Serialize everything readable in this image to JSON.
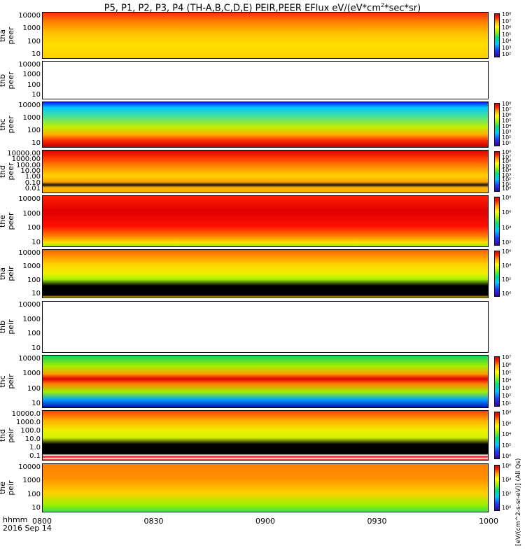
{
  "title_html": "P5, P1, P2, P3, P4 (TH-A,B,C,D,E) PEIR,PEER EFlux eV/(eV*cm<sup>2</sup>*sec*sr)",
  "time_axis": {
    "label_line1": "hhmm",
    "label_line2": "2016 Sep 14",
    "ticks": [
      "0800",
      "0830",
      "0900",
      "0930",
      "1000"
    ]
  },
  "colorbar_label": "[eV/(cm^2-s-sr-eV)] (All Qs)",
  "chart_data": {
    "type": "heatmap",
    "x_range": [
      "0800",
      "1000"
    ],
    "panels": [
      {
        "name": "tha peer",
        "ylabel": [
          "tha",
          "peer"
        ],
        "yticks": [
          "10000",
          "1000",
          "100",
          "10"
        ],
        "colorbar_ticks": [
          "10⁸",
          "10⁷",
          "10⁶",
          "10⁵",
          "10⁴",
          "10³",
          "10²"
        ],
        "has_data": true
      },
      {
        "name": "thb peer",
        "ylabel": [
          "thb",
          "peer"
        ],
        "yticks": [
          "10000",
          "1000",
          "100",
          "10"
        ],
        "colorbar_ticks": [],
        "has_data": false
      },
      {
        "name": "thc peer",
        "ylabel": [
          "thc",
          "peer"
        ],
        "yticks": [
          "10000",
          "1000",
          "100",
          "10"
        ],
        "colorbar_ticks": [
          "10⁸",
          "10⁷",
          "10⁶",
          "10⁵",
          "10⁴",
          "10³",
          "10²",
          "10¹"
        ],
        "has_data": true
      },
      {
        "name": "thd peer",
        "ylabel": [
          "thd",
          "peer"
        ],
        "yticks": [
          "10000.00",
          "1000.00",
          "100.00",
          "10.00",
          "1.00",
          "0.10",
          "0.01"
        ],
        "colorbar_ticks": [
          "10⁸",
          "10⁷",
          "10⁶",
          "10⁵",
          "10⁴",
          "10³",
          "10²",
          "10¹",
          "10⁰"
        ],
        "has_data": true
      },
      {
        "name": "the peer",
        "ylabel": [
          "the",
          "peer"
        ],
        "yticks": [
          "10000",
          "1000",
          "100",
          "10"
        ],
        "colorbar_ticks": [
          "10⁸",
          "10⁶",
          "10⁴",
          "10²"
        ],
        "has_data": true
      },
      {
        "name": "tha peir",
        "ylabel": [
          "tha",
          "peir"
        ],
        "yticks": [
          "10000",
          "1000",
          "100",
          "10"
        ],
        "colorbar_ticks": [
          "10⁶",
          "10⁴",
          "10²",
          "10⁰"
        ],
        "has_data": true
      },
      {
        "name": "thb peir",
        "ylabel": [
          "thb",
          "peir"
        ],
        "yticks": [
          "10000",
          "1000",
          "100",
          "10"
        ],
        "colorbar_ticks": [],
        "has_data": false
      },
      {
        "name": "thc peir",
        "ylabel": [
          "thc",
          "peir"
        ],
        "yticks": [
          "10000",
          "1000",
          "100",
          "10"
        ],
        "colorbar_ticks": [
          "10⁷",
          "10⁶",
          "10⁵",
          "10⁴",
          "10³",
          "10²",
          "10¹"
        ],
        "has_data": true
      },
      {
        "name": "thd peir",
        "ylabel": [
          "thd",
          "peir"
        ],
        "yticks": [
          "10000.0",
          "1000.0",
          "100.0",
          "10.0",
          "1.0",
          "0.1"
        ],
        "colorbar_ticks": [
          "10⁸",
          "10⁶",
          "10⁴",
          "10²",
          "10⁰"
        ],
        "has_data": true
      },
      {
        "name": "the peir",
        "ylabel": [
          "the",
          "peir"
        ],
        "yticks": [
          "10000",
          "1000",
          "100",
          "10"
        ],
        "colorbar_ticks": [
          "10⁶",
          "10⁴",
          "10²",
          "10⁰"
        ],
        "has_data": true
      }
    ]
  }
}
